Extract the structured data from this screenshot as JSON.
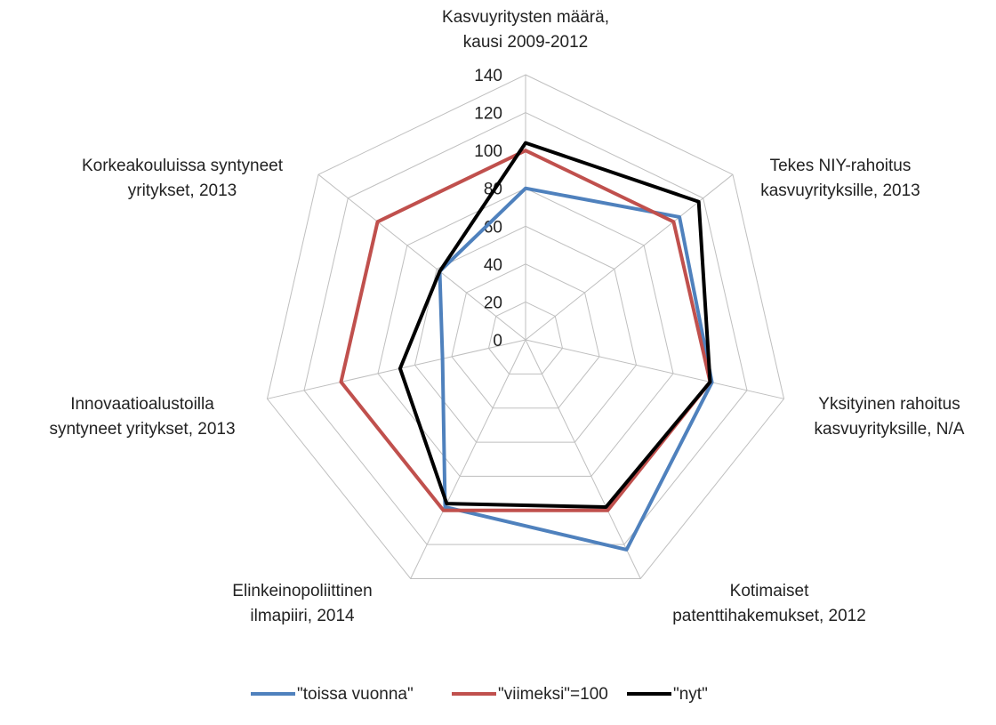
{
  "chart_data": {
    "type": "radar",
    "categories": [
      [
        "Kasvuyritysten määrä,",
        "kausi 2009-2012"
      ],
      [
        "Tekes NIY-rahoitus",
        "kasvuyrityksille, 2013"
      ],
      [
        "Yksityinen rahoitus",
        "kasvuyrityksille, N/A"
      ],
      [
        "Kotimaiset",
        "patenttihakemukset, 2012"
      ],
      [
        "Elinkeinopoliittinen",
        "ilmapiiri, 2014"
      ],
      [
        "Innovaatioalustoilla",
        "syntyneet yritykset, 2013"
      ],
      [
        "Korkeakouluissa syntyneet",
        "yritykset, 2013"
      ]
    ],
    "series": [
      {
        "name": "\"toissa vuonna\"",
        "color": "#4f81bd",
        "values": [
          80,
          104,
          101,
          123,
          98,
          45,
          58
        ]
      },
      {
        "name": "\"viimeksi\"=100",
        "color": "#c0504d",
        "values": [
          100,
          100,
          100,
          100,
          100,
          100,
          100
        ]
      },
      {
        "name": "\"nyt\"",
        "color": "#000000",
        "values": [
          104,
          117,
          100,
          98,
          96,
          68,
          58
        ]
      }
    ],
    "ylim": [
      0,
      140
    ],
    "yticks": [
      0,
      20,
      40,
      60,
      80,
      100,
      120,
      140
    ],
    "grid": true,
    "legend": "bottom"
  }
}
